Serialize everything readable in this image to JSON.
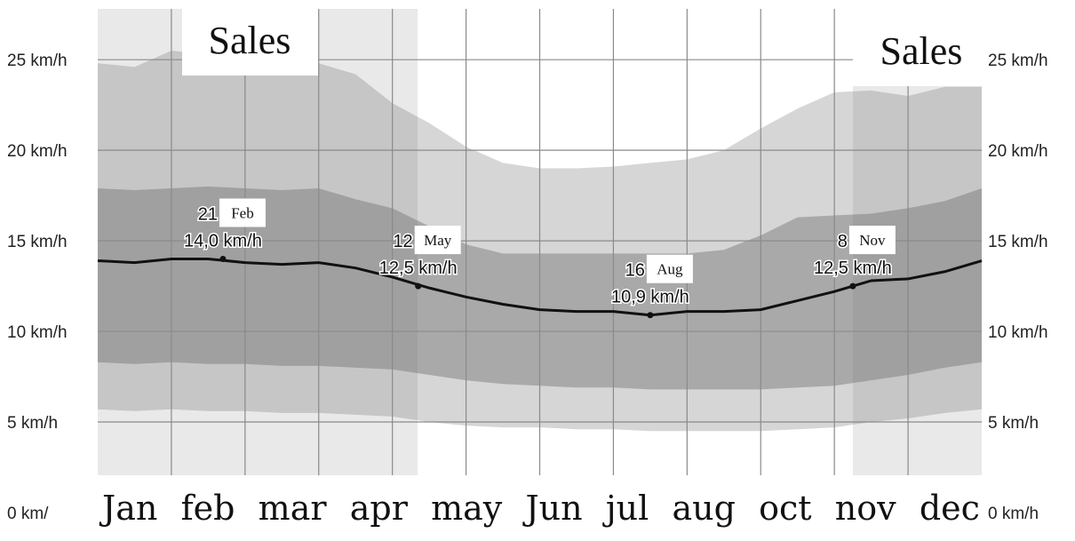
{
  "chart_data": {
    "type": "band",
    "categories": [
      "Jan",
      "feb",
      "mar",
      "apr",
      "may",
      "Jun",
      "jul",
      "aug",
      "oct",
      "nov",
      "dec"
    ],
    "x": [
      0,
      0.5,
      1,
      1.5,
      2,
      2.5,
      3,
      3.5,
      4,
      4.5,
      5,
      5.5,
      6,
      6.5,
      7,
      7.5,
      8,
      8.5,
      9,
      9.5,
      10,
      10.5,
      11,
      11.5,
      12
    ],
    "xlim": [
      0,
      12
    ],
    "bands": [
      {
        "color": "#d6d6d6",
        "upper": [
          24.8,
          24.6,
          25.5,
          25.3,
          25.0,
          24.9,
          24.8,
          24.2,
          22.6,
          21.5,
          20.2,
          19.3,
          19.0,
          19.0,
          19.1,
          19.3,
          19.5,
          20.0,
          21.2,
          22.3,
          23.2,
          23.3,
          23.0,
          23.5,
          23.5
        ],
        "lower": [
          5.7,
          5.6,
          5.7,
          5.6,
          5.6,
          5.5,
          5.5,
          5.4,
          5.3,
          5.0,
          4.8,
          4.7,
          4.7,
          4.6,
          4.6,
          4.5,
          4.5,
          4.5,
          4.5,
          4.6,
          4.7,
          5.0,
          5.2,
          5.5,
          5.7
        ]
      },
      {
        "color": "#a9a9a9",
        "upper": [
          17.9,
          17.8,
          17.9,
          18.0,
          17.9,
          17.8,
          17.9,
          17.3,
          16.8,
          15.8,
          14.8,
          14.3,
          14.3,
          14.3,
          14.3,
          14.3,
          14.3,
          14.5,
          15.3,
          16.3,
          16.4,
          16.5,
          16.8,
          17.2,
          17.9
        ],
        "lower": [
          8.3,
          8.2,
          8.3,
          8.2,
          8.2,
          8.1,
          8.1,
          8.0,
          7.9,
          7.6,
          7.3,
          7.1,
          7.0,
          6.9,
          6.9,
          6.8,
          6.8,
          6.8,
          6.8,
          6.9,
          7.0,
          7.3,
          7.6,
          8.0,
          8.3
        ]
      }
    ],
    "median": {
      "color": "#111111",
      "values": [
        13.9,
        13.8,
        14.0,
        14.0,
        13.8,
        13.7,
        13.8,
        13.5,
        13.0,
        12.4,
        11.9,
        11.5,
        11.2,
        11.1,
        11.1,
        10.9,
        11.1,
        11.1,
        11.2,
        11.7,
        12.2,
        12.8,
        12.9,
        13.3,
        13.9
      ]
    },
    "annotations": [
      {
        "x": 1.7,
        "value": 14.0,
        "day": "21",
        "month": "Feb",
        "label": "14,0 km/h"
      },
      {
        "x": 4.35,
        "value": 12.5,
        "day": "12",
        "month": "May",
        "label": "12,5 km/h"
      },
      {
        "x": 7.5,
        "value": 10.9,
        "day": "16",
        "month": "Aug",
        "label": "10,9 km/h"
      },
      {
        "x": 10.25,
        "value": 12.5,
        "day": "8",
        "month": "Nov",
        "label": "12,5 km/h"
      }
    ],
    "regions": [
      {
        "label": "Sales"
      },
      {
        "label": "Sales"
      }
    ],
    "ylim": [
      0,
      28
    ],
    "yticks": [
      {
        "value": 0,
        "label": "0 km/"
      },
      {
        "value": 5,
        "label": "5 km/h"
      },
      {
        "value": 10,
        "label": "10 km/h"
      },
      {
        "value": 15,
        "label": "15 km/h"
      },
      {
        "value": 20,
        "label": "20 km/h"
      },
      {
        "value": 25,
        "label": "25 km/h"
      }
    ],
    "y2lim": [
      0,
      28
    ],
    "y2ticks": [
      {
        "value": 0,
        "label": "0 km/h"
      },
      {
        "value": 5,
        "label": "5 km/h"
      },
      {
        "value": 10,
        "label": "10 km/h"
      },
      {
        "value": 15,
        "label": "15 km/h"
      },
      {
        "value": 20,
        "label": "20 km/h"
      },
      {
        "value": 25,
        "label": "25 km/h"
      }
    ],
    "grid": true
  }
}
